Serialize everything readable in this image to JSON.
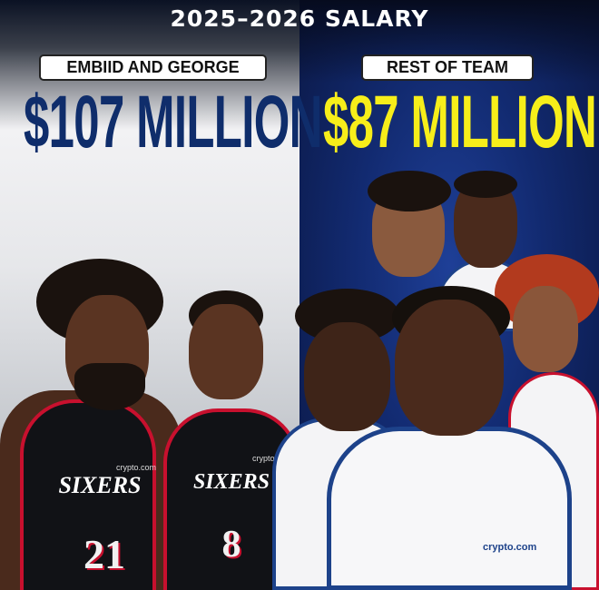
{
  "header": {
    "title": "2025–2026 SALARY"
  },
  "left": {
    "label": "EMBIID AND GEORGE",
    "amount": "$107 MILLION",
    "amount_color": "#0f2d6b",
    "players": [
      {
        "team_text": "SIXERS",
        "number": "21",
        "sponsor": "crypto.com"
      },
      {
        "team_text": "SIXERS",
        "number": "8",
        "sponsor": "crypto.com"
      }
    ]
  },
  "right": {
    "label": "REST OF TEAM",
    "amount": "$87 MILLION",
    "amount_color": "#f7ee1a",
    "players": [
      {
        "sponsor": "crypto.com"
      }
    ]
  },
  "colors": {
    "sixers_red": "#c8102e",
    "sixers_blue": "#1d428a",
    "jersey_black": "#111216"
  }
}
